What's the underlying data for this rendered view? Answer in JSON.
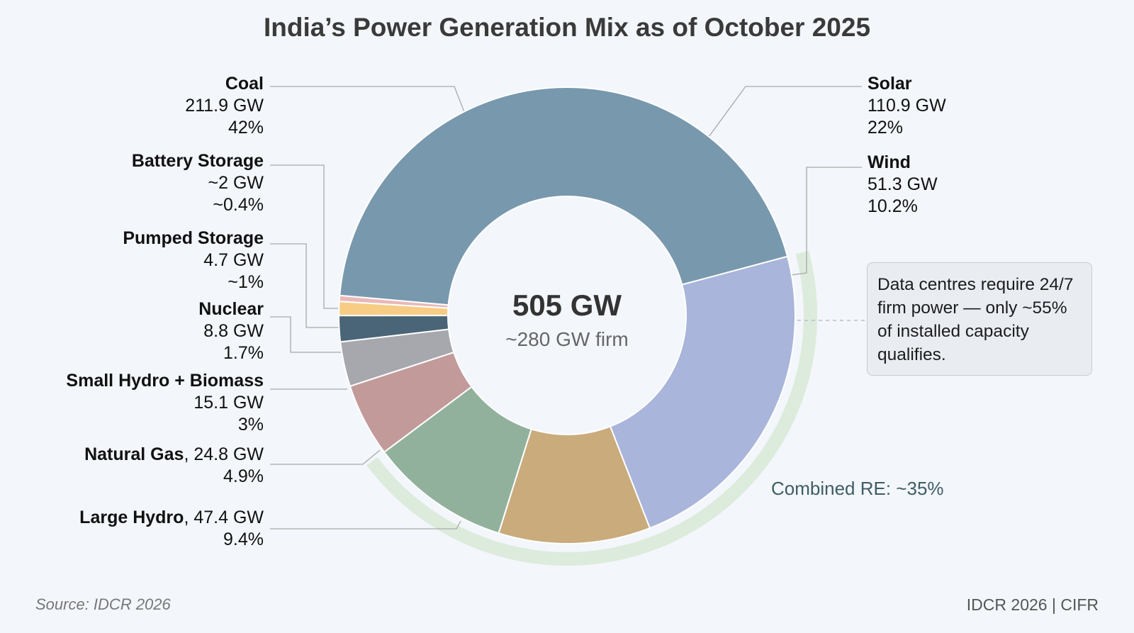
{
  "chart_data": {
    "type": "pie",
    "title": "India’s Power Generation Mix as of October 2025",
    "center": {
      "value": "505 GW",
      "sub": "~280 GW firm"
    },
    "segments": [
      {
        "name": "Solar",
        "gw": "110.9 GW",
        "pct": "22%",
        "value": 110.9,
        "color": "#a9b5da"
      },
      {
        "name": "Wind",
        "gw": "51.3 GW",
        "pct": "10.2%",
        "value": 51.3,
        "color": "#c9ab7c"
      },
      {
        "name": "Large Hydro",
        "gw": "47.4 GW",
        "pct": "9.4%",
        "value": 47.4,
        "color": "#91b19c"
      },
      {
        "name": "Natural Gas",
        "gw": "24.8 GW",
        "pct": "4.9%",
        "value": 24.8,
        "color": "#c29a9a"
      },
      {
        "name": "Small Hydro + Biomass",
        "gw": "15.1 GW",
        "pct": "3%",
        "value": 15.1,
        "color": "#a7a8ad"
      },
      {
        "name": "Nuclear",
        "gw": "8.8 GW",
        "pct": "1.7%",
        "value": 8.8,
        "color": "#4a6577"
      },
      {
        "name": "Pumped Storage",
        "gw": "4.7 GW",
        "pct": "~1%",
        "value": 4.7,
        "color": "#f7cd85"
      },
      {
        "name": "Battery Storage",
        "gw": "~2 GW",
        "pct": "~0.4%",
        "value": 2,
        "color": "#eab8b8"
      },
      {
        "name": "Coal",
        "gw": "211.9 GW",
        "pct": "42%",
        "value": 211.9,
        "color": "#7898ad"
      }
    ],
    "combined_re_label": "Combined RE: ~35%",
    "combined_re_color": "#dcebdc",
    "callout": "Data centres require 24/7 firm power — only ~55% of installed capacity qualifies."
  },
  "source": "Source: IDCR 2026",
  "credit": "IDCR 2026 | CIFR"
}
